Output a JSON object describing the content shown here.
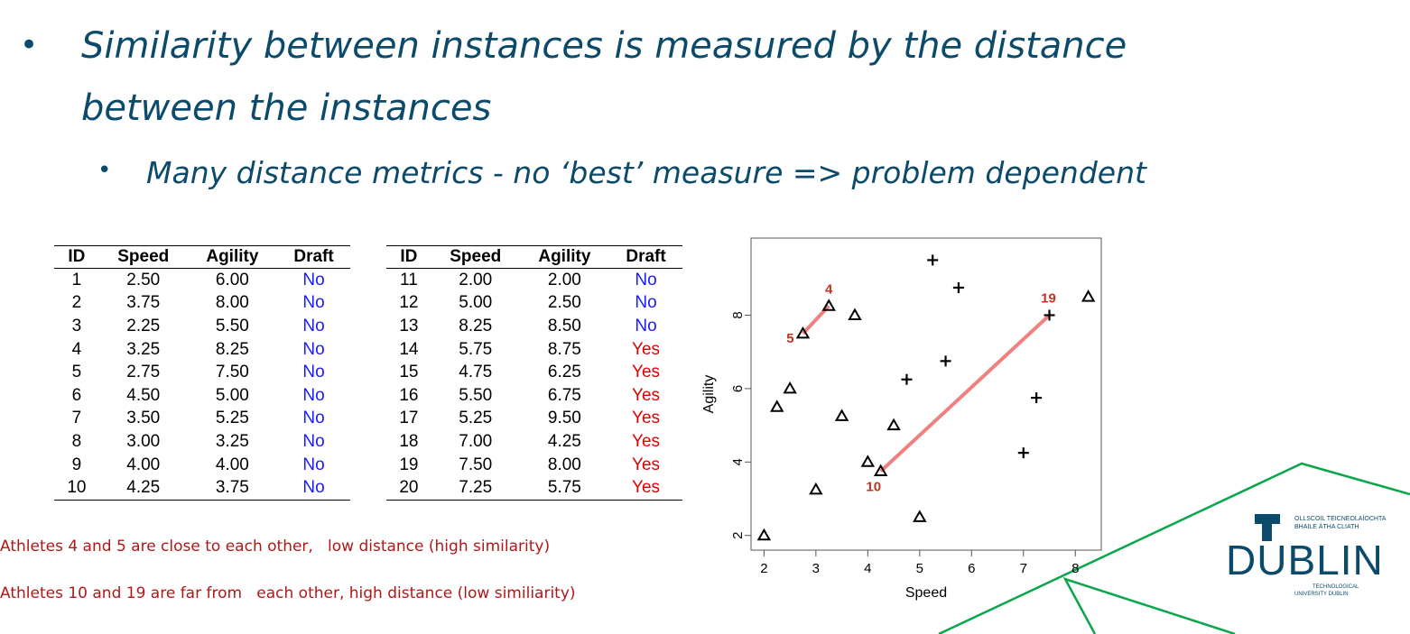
{
  "slide": {
    "bullet_1_line_1": "Similarity between instances is measured by the distance",
    "bullet_1_line_2": "between the instances",
    "bullet_2": "Many distance metrics - no ‘best’ measure => problem dependent"
  },
  "table": {
    "headers": [
      "ID",
      "Speed",
      "Agility",
      "Draft"
    ],
    "left_rows": [
      [
        "1",
        "2.50",
        "6.00",
        "No"
      ],
      [
        "2",
        "3.75",
        "8.00",
        "No"
      ],
      [
        "3",
        "2.25",
        "5.50",
        "No"
      ],
      [
        "4",
        "3.25",
        "8.25",
        "No"
      ],
      [
        "5",
        "2.75",
        "7.50",
        "No"
      ],
      [
        "6",
        "4.50",
        "5.00",
        "No"
      ],
      [
        "7",
        "3.50",
        "5.25",
        "No"
      ],
      [
        "8",
        "3.00",
        "3.25",
        "No"
      ],
      [
        "9",
        "4.00",
        "4.00",
        "No"
      ],
      [
        "10",
        "4.25",
        "3.75",
        "No"
      ]
    ],
    "right_rows": [
      [
        "11",
        "2.00",
        "2.00",
        "No"
      ],
      [
        "12",
        "5.00",
        "2.50",
        "No"
      ],
      [
        "13",
        "8.25",
        "8.50",
        "No"
      ],
      [
        "14",
        "5.75",
        "8.75",
        "Yes"
      ],
      [
        "15",
        "4.75",
        "6.25",
        "Yes"
      ],
      [
        "16",
        "5.50",
        "6.75",
        "Yes"
      ],
      [
        "17",
        "5.25",
        "9.50",
        "Yes"
      ],
      [
        "18",
        "7.00",
        "4.25",
        "Yes"
      ],
      [
        "19",
        "7.50",
        "8.00",
        "Yes"
      ],
      [
        "20",
        "7.25",
        "5.75",
        "Yes"
      ]
    ],
    "colors": {
      "no": "#1a1aff",
      "yes": "#e00000"
    }
  },
  "notes": {
    "note_1": "Athletes 4 and 5 are close to each other,   low distance (high similarity)",
    "note_2": "Athletes 10 and 19 are far from   each other, high distance (low similiarity)"
  },
  "chart_data": {
    "type": "scatter",
    "xlabel": "Speed",
    "ylabel": "Agility",
    "xlim": [
      1.75,
      8.5
    ],
    "ylim": [
      1.6,
      10.1
    ],
    "xticks": [
      "2",
      "3",
      "4",
      "5",
      "6",
      "7",
      "8"
    ],
    "yticks": [
      "2",
      "4",
      "6",
      "8"
    ],
    "grid": false,
    "series": [
      {
        "name": "No",
        "marker": "triangle",
        "points": [
          {
            "id": "1",
            "x": 2.5,
            "y": 6.0
          },
          {
            "id": "2",
            "x": 3.75,
            "y": 8.0
          },
          {
            "id": "3",
            "x": 2.25,
            "y": 5.5
          },
          {
            "id": "4",
            "x": 3.25,
            "y": 8.25
          },
          {
            "id": "5",
            "x": 2.75,
            "y": 7.5
          },
          {
            "id": "6",
            "x": 4.5,
            "y": 5.0
          },
          {
            "id": "7",
            "x": 3.5,
            "y": 5.25
          },
          {
            "id": "8",
            "x": 3.0,
            "y": 3.25
          },
          {
            "id": "9",
            "x": 4.0,
            "y": 4.0
          },
          {
            "id": "10",
            "x": 4.25,
            "y": 3.75
          },
          {
            "id": "11",
            "x": 2.0,
            "y": 2.0
          },
          {
            "id": "12",
            "x": 5.0,
            "y": 2.5
          },
          {
            "id": "13",
            "x": 8.25,
            "y": 8.5
          }
        ]
      },
      {
        "name": "Yes",
        "marker": "plus",
        "points": [
          {
            "id": "14",
            "x": 5.75,
            "y": 8.75
          },
          {
            "id": "15",
            "x": 4.75,
            "y": 6.25
          },
          {
            "id": "16",
            "x": 5.5,
            "y": 6.75
          },
          {
            "id": "17",
            "x": 5.25,
            "y": 9.5
          },
          {
            "id": "18",
            "x": 7.0,
            "y": 4.25
          },
          {
            "id": "19",
            "x": 7.5,
            "y": 8.0
          },
          {
            "id": "20",
            "x": 7.25,
            "y": 5.75
          }
        ]
      }
    ],
    "annotations": [
      {
        "label": "4",
        "x": 3.25,
        "y": 8.25
      },
      {
        "label": "5",
        "x": 2.75,
        "y": 7.5
      },
      {
        "label": "10",
        "x": 4.25,
        "y": 3.75
      },
      {
        "label": "19",
        "x": 7.5,
        "y": 8.0
      }
    ],
    "highlight_lines": [
      {
        "from": "5",
        "to": "4"
      },
      {
        "from": "10",
        "to": "19"
      }
    ],
    "colors": {
      "marker": "#000000",
      "annotation": "#c0341f",
      "highlight_line": "#f08080"
    }
  },
  "logo": {
    "line_1": "OLLSCOIL TEICNEOLAÍOCHTA",
    "line_2": "BHAILE ÁTHA CLIATH",
    "wordmark": "DUBLIN",
    "line_3": "TECHNOLOGICAL",
    "line_4": "UNIVERSITY DUBLIN",
    "color": "#0b4a6b"
  },
  "decoration": {
    "color": "#0aa64a"
  }
}
